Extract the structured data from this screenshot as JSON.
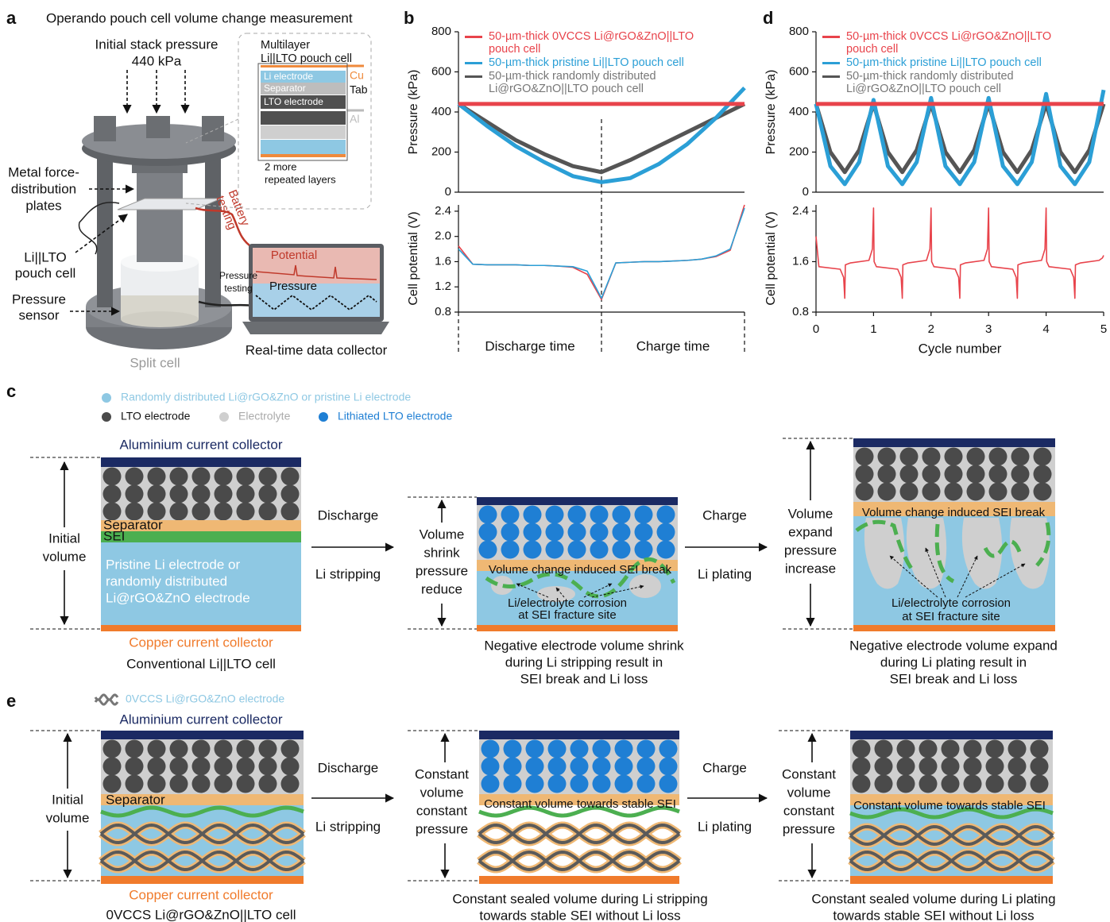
{
  "panel_letters": [
    "a",
    "b",
    "c",
    "d",
    "e"
  ],
  "panel_a": {
    "title": "Operando pouch cell volume change measurement",
    "pressure_label": [
      "Initial stack pressure",
      "440 kPa"
    ],
    "plates_label": [
      "Metal force-",
      "distribution",
      "plates"
    ],
    "cell_label": [
      "Li||LTO",
      "pouch cell"
    ],
    "sensor_label": [
      "Pressure",
      "sensor"
    ],
    "split_cell": "Split cell",
    "collector": "Real-time data collector",
    "battery_testing": [
      "Battery",
      "testing"
    ],
    "pressure_testing": [
      "Pressure",
      "testing"
    ],
    "screen_potential": "Potential",
    "screen_pressure": "Pressure",
    "inset": {
      "title": [
        "Multilayer",
        "Li||LTO pouch cell"
      ],
      "layers": [
        "Li electrode",
        "Separator",
        "LTO electrode"
      ],
      "cu": "Cu",
      "tab": "Tab",
      "al": "Al",
      "note": [
        "2 more",
        "repeated layers"
      ]
    }
  },
  "chart_data": [
    {
      "type": "line",
      "ylabel": "Pressure (kPa)",
      "ylim": [
        0,
        800
      ],
      "yticks": [
        0,
        200,
        400,
        600,
        800
      ],
      "legend": "upper left",
      "series": [
        {
          "name": "50-µm-thick 0VCCS Li@rGO&ZnO||LTO pouch cell",
          "color": "#e8434b",
          "values": [
            440,
            440,
            440,
            440,
            440,
            440,
            440,
            440,
            440,
            440,
            440
          ]
        },
        {
          "name": "50-µm-thick pristine Li||LTO pouch cell",
          "color": "#2b9fd6",
          "values": [
            440,
            330,
            230,
            150,
            80,
            50,
            70,
            140,
            240,
            370,
            520
          ]
        },
        {
          "name": "50-µm-thick randomly distributed Li@rGO&ZnO||LTO pouch cell",
          "color": "#555555",
          "values": [
            440,
            350,
            260,
            190,
            130,
            100,
            160,
            230,
            300,
            370,
            440
          ]
        }
      ]
    },
    {
      "type": "line",
      "ylabel": "Cell potential (V)",
      "ylim": [
        0.8,
        2.5
      ],
      "yticks": [
        0.8,
        1.2,
        1.6,
        {
          "value": 2.0,
          "label": "2.0"
        },
        2.4
      ],
      "x_labels": [
        "Discharge time",
        "Charge time"
      ],
      "series": [
        {
          "color": "#2b9fd6",
          "values": [
            1.8,
            1.56,
            1.55,
            1.55,
            1.55,
            1.54,
            1.54,
            1.53,
            1.52,
            1.45,
            1.02,
            1.58,
            1.59,
            1.6,
            1.6,
            1.61,
            1.62,
            1.64,
            1.69,
            1.8,
            2.45
          ]
        },
        {
          "color": "#e8434b",
          "values": [
            1.85,
            1.56,
            1.55,
            1.55,
            1.55,
            1.54,
            1.54,
            1.53,
            1.51,
            1.4,
            1.0,
            1.58,
            1.59,
            1.6,
            1.6,
            1.61,
            1.62,
            1.64,
            1.68,
            1.78,
            2.5
          ]
        }
      ]
    },
    {
      "type": "line",
      "ylabel": "Pressure (kPa)",
      "ylim": [
        0,
        800
      ],
      "yticks": [
        0,
        200,
        400,
        600,
        800
      ],
      "legend": "upper left",
      "xlim": [
        0,
        5
      ],
      "x": [
        0,
        0.25,
        0.5,
        0.75,
        1,
        1.25,
        1.5,
        1.75,
        2,
        2.25,
        2.5,
        2.75,
        3,
        3.25,
        3.5,
        3.75,
        4,
        4.25,
        4.5,
        4.75,
        5
      ],
      "series": [
        {
          "name": "50-µm-thick 0VCCS Li@rGO&ZnO||LTO pouch cell",
          "color": "#e8434b",
          "values": [
            440,
            440,
            440,
            440,
            440,
            440,
            440,
            440,
            440,
            440,
            440,
            440,
            440,
            440,
            440,
            440,
            440,
            440,
            440,
            440,
            440
          ]
        },
        {
          "name": "50-µm-thick pristine Li||LTO pouch cell",
          "color": "#2b9fd6",
          "values": [
            440,
            130,
            40,
            150,
            460,
            130,
            40,
            150,
            470,
            130,
            40,
            150,
            470,
            130,
            40,
            150,
            490,
            130,
            40,
            150,
            510
          ]
        },
        {
          "name": "50-µm-thick randomly distributed Li@rGO&ZnO||LTO pouch cell",
          "color": "#555555",
          "values": [
            440,
            200,
            100,
            210,
            440,
            200,
            100,
            210,
            440,
            200,
            100,
            210,
            440,
            200,
            100,
            210,
            440,
            200,
            100,
            210,
            440
          ]
        }
      ]
    },
    {
      "type": "line",
      "ylabel": "Cell potential (V)",
      "ylim": [
        0.8,
        2.5
      ],
      "yticks": [
        0.8,
        1.6,
        2.4
      ],
      "xlabel": "Cycle number",
      "xlim": [
        0,
        5
      ],
      "xticks": [
        0,
        1,
        2,
        3,
        4,
        5
      ],
      "x": [
        0,
        0.05,
        0.42,
        0.48,
        0.5,
        0.51,
        0.6,
        0.92,
        0.98,
        1.0,
        1.01,
        1.05,
        1.42,
        1.48,
        1.5,
        1.51,
        1.6,
        1.92,
        1.98,
        2.0,
        2.01,
        2.05,
        2.42,
        2.48,
        2.5,
        2.51,
        2.6,
        2.92,
        2.98,
        3.0,
        3.01,
        3.05,
        3.42,
        3.48,
        3.5,
        3.51,
        3.6,
        3.92,
        3.98,
        4.0,
        4.01,
        4.05,
        4.42,
        4.48,
        4.5,
        4.51,
        4.6,
        4.92,
        4.98,
        5.0
      ],
      "series": [
        {
          "color": "#e8434b",
          "values": [
            2.0,
            1.52,
            1.48,
            1.35,
            1.02,
            1.55,
            1.58,
            1.62,
            1.8,
            2.45,
            1.6,
            1.52,
            1.48,
            1.35,
            1.02,
            1.55,
            1.58,
            1.62,
            1.8,
            2.45,
            1.6,
            1.52,
            1.48,
            1.35,
            1.02,
            1.55,
            1.58,
            1.62,
            1.8,
            2.45,
            1.6,
            1.52,
            1.48,
            1.35,
            1.02,
            1.55,
            1.58,
            1.62,
            1.8,
            2.45,
            1.6,
            1.52,
            1.48,
            1.35,
            1.02,
            1.55,
            1.58,
            1.62,
            1.66,
            1.7
          ]
        }
      ]
    }
  ],
  "panel_c": {
    "legend": [
      "Randomly distributed Li@rGO&ZnO or pristine Li electrode",
      "LTO electrode",
      "Electrolyte",
      "Lithiated LTO electrode"
    ],
    "al": "Aluminium current collector",
    "separator": "Separator",
    "sei": "SEI",
    "li": [
      "Pristine Li electrode or",
      "randomly distributed",
      "Li@rGO&ZnO electrode"
    ],
    "cu": "Copper current collector",
    "cell": "Conventional Li||LTO cell",
    "initial": [
      "Initial",
      "volume"
    ],
    "discharge": "Discharge",
    "stripping": "Li stripping",
    "shrink": [
      "Volume",
      "shrink",
      "pressure",
      "reduce"
    ],
    "sei_break_1": "Volume change induced SEI break",
    "corrosion_1": [
      "Li/electrolyte corrosion",
      "at SEI fracture site"
    ],
    "caption_1": [
      "Negative electrode volume shrink",
      "during Li stripping result in",
      "SEI break and Li loss"
    ],
    "charge": "Charge",
    "plating": "Li plating",
    "expand": [
      "Volume",
      "expand",
      "pressure",
      "increase"
    ],
    "sei_break_2": "Volume change induced SEI break",
    "corrosion_2": [
      "Li/electrolyte corrosion",
      "at SEI fracture site"
    ],
    "caption_2": [
      "Negative electrode volume expand",
      "during Li plating result in",
      "SEI break and Li loss"
    ]
  },
  "panel_e": {
    "legend": "0VCCS Li@rGO&ZnO electrode",
    "al": "Aluminium current collector",
    "separator": "Separator",
    "cu": "Copper current collector",
    "cell": "0VCCS Li@rGO&ZnO||LTO cell",
    "initial": [
      "Initial",
      "volume"
    ],
    "discharge": "Discharge",
    "stripping": "Li stripping",
    "constant_1": [
      "Constant",
      "volume",
      "constant",
      "pressure"
    ],
    "stable_1": "Constant volume towards stable SEI",
    "caption_1": [
      "Constant sealed volume during Li stripping",
      "towards stable SEI without Li loss"
    ],
    "charge": "Charge",
    "plating": "Li plating",
    "constant_2": [
      "Constant",
      "volume",
      "constant",
      "pressure"
    ],
    "stable_2": "Constant volume towards stable SEI",
    "caption_2": [
      "Constant sealed volume during Li plating",
      "towards stable SEI without Li loss"
    ]
  }
}
